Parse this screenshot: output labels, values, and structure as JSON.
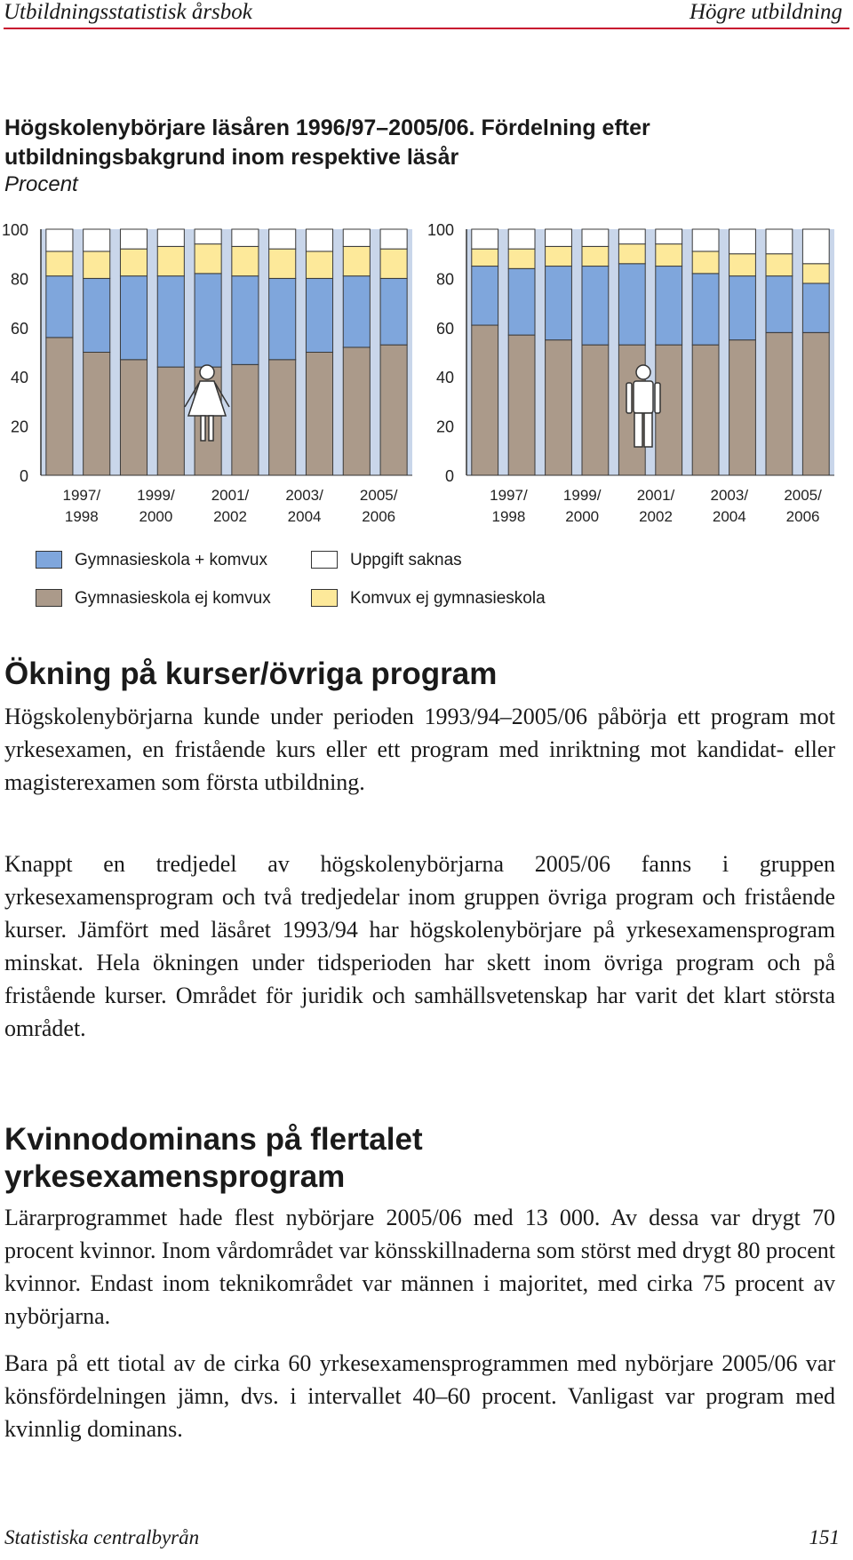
{
  "header": {
    "left": "Utbildningsstatistisk årsbok",
    "right": "Högre utbildning"
  },
  "figure": {
    "title_line1": "Högskolenybörjare läsåren 1996/97–2005/06. Fördelning efter",
    "title_line2": "utbildningsbakgrund inom respektive läsår",
    "unit": "Procent"
  },
  "chart_data": [
    {
      "type": "bar",
      "stacked": true,
      "gender_icon": "woman-icon",
      "y_ticks": [
        "100",
        "80",
        "60",
        "40",
        "20",
        "0"
      ],
      "ylim": [
        0,
        100
      ],
      "x_tick_labels": [
        {
          "top": "1997/",
          "bottom": "1998"
        },
        {
          "top": "1999/",
          "bottom": "2000"
        },
        {
          "top": "2001/",
          "bottom": "2002"
        },
        {
          "top": "2003/",
          "bottom": "2004"
        },
        {
          "top": "2005/",
          "bottom": "2006"
        }
      ],
      "series": [
        {
          "name": "Gymnasieskola ej komvux",
          "color": "#ab9a8a",
          "values": [
            56,
            50,
            47,
            44,
            44,
            45,
            47,
            50,
            52,
            53
          ]
        },
        {
          "name": "Gymnasieskola + komvux",
          "color": "#7fa6dc",
          "values": [
            25,
            30,
            34,
            37,
            38,
            36,
            33,
            30,
            29,
            27
          ]
        },
        {
          "name": "Komvux ej gymnasieskola",
          "color": "#fde99a",
          "values": [
            10,
            11,
            11,
            12,
            12,
            12,
            12,
            11,
            12,
            12
          ]
        },
        {
          "name": "Uppgift saknas",
          "color": "#ffffff",
          "values": [
            9,
            9,
            8,
            7,
            6,
            7,
            8,
            9,
            7,
            8
          ]
        }
      ]
    },
    {
      "type": "bar",
      "stacked": true,
      "gender_icon": "man-icon",
      "y_ticks": [
        "100",
        "80",
        "60",
        "40",
        "20",
        "0"
      ],
      "ylim": [
        0,
        100
      ],
      "x_tick_labels": [
        {
          "top": "1997/",
          "bottom": "1998"
        },
        {
          "top": "1999/",
          "bottom": "2000"
        },
        {
          "top": "2001/",
          "bottom": "2002"
        },
        {
          "top": "2003/",
          "bottom": "2004"
        },
        {
          "top": "2005/",
          "bottom": "2006"
        }
      ],
      "series": [
        {
          "name": "Gymnasieskola ej komvux",
          "color": "#ab9a8a",
          "values": [
            61,
            57,
            55,
            53,
            53,
            53,
            53,
            55,
            58,
            58
          ]
        },
        {
          "name": "Gymnasieskola + komvux",
          "color": "#7fa6dc",
          "values": [
            24,
            27,
            30,
            32,
            33,
            32,
            29,
            26,
            23,
            20
          ]
        },
        {
          "name": "Komvux ej gymnasieskola",
          "color": "#fde99a",
          "values": [
            7,
            8,
            8,
            8,
            8,
            9,
            9,
            9,
            9,
            8
          ]
        },
        {
          "name": "Uppgift saknas",
          "color": "#ffffff",
          "values": [
            8,
            8,
            7,
            7,
            6,
            6,
            9,
            10,
            10,
            14
          ]
        }
      ]
    }
  ],
  "legend": [
    {
      "label": "Gymnasieskola + komvux",
      "color": "#7fa6dc"
    },
    {
      "label": "Uppgift saknas",
      "color": "#ffffff"
    },
    {
      "label": "Gymnasieskola ej komvux",
      "color": "#ab9a8a"
    },
    {
      "label": "Komvux ej gymnasieskola",
      "color": "#fde99a"
    }
  ],
  "section1": {
    "heading": "Ökning på kurser/övriga program",
    "p1": "Högskolenybörjarna kunde under perioden 1993/94–2005/06 påbörja ett program mot yrkesexamen, en fristående kurs eller ett program med inriktning mot kandidat- eller magisterexamen som första ut­bildning.",
    "p2": "Knappt en tredjedel av högskolenybörjarna 2005/06 fanns i gruppen yrkesexamensprogram och två tredjedelar inom gruppen övriga pro­gram och fristående kurser. Jämfört med läsåret 1993/94 har högsko­lenybörjare på yrkesexamensprogram minskat. Hela ökningen under tidsperioden har skett inom övriga program och på fristående kurser. Området för juridik och samhällsvetenskap har varit det klart största området."
  },
  "section2": {
    "heading_line1": "Kvinnodominans på flertalet",
    "heading_line2": "yrkesexamensprogram",
    "p1": "Lärarprogrammet hade flest nybörjare 2005/06 med 13 000. Av dessa var drygt 70 procent kvinnor. Inom vårdområdet var könsskillnader­na som störst med drygt 80 procent kvinnor. Endast inom teknikom­rådet var männen i majoritet, med cirka 75 procent av nybörjarna.",
    "p2": "Bara på ett tiotal av de cirka 60 yrkesexamensprogrammen med ny­börjare 2005/06 var könsfördelningen jämn, dvs. i intervallet 40–60 procent. Vanligast var program med kvinnlig dominans."
  },
  "footer": {
    "left": "Statistiska centralbyrån",
    "right": "151"
  }
}
